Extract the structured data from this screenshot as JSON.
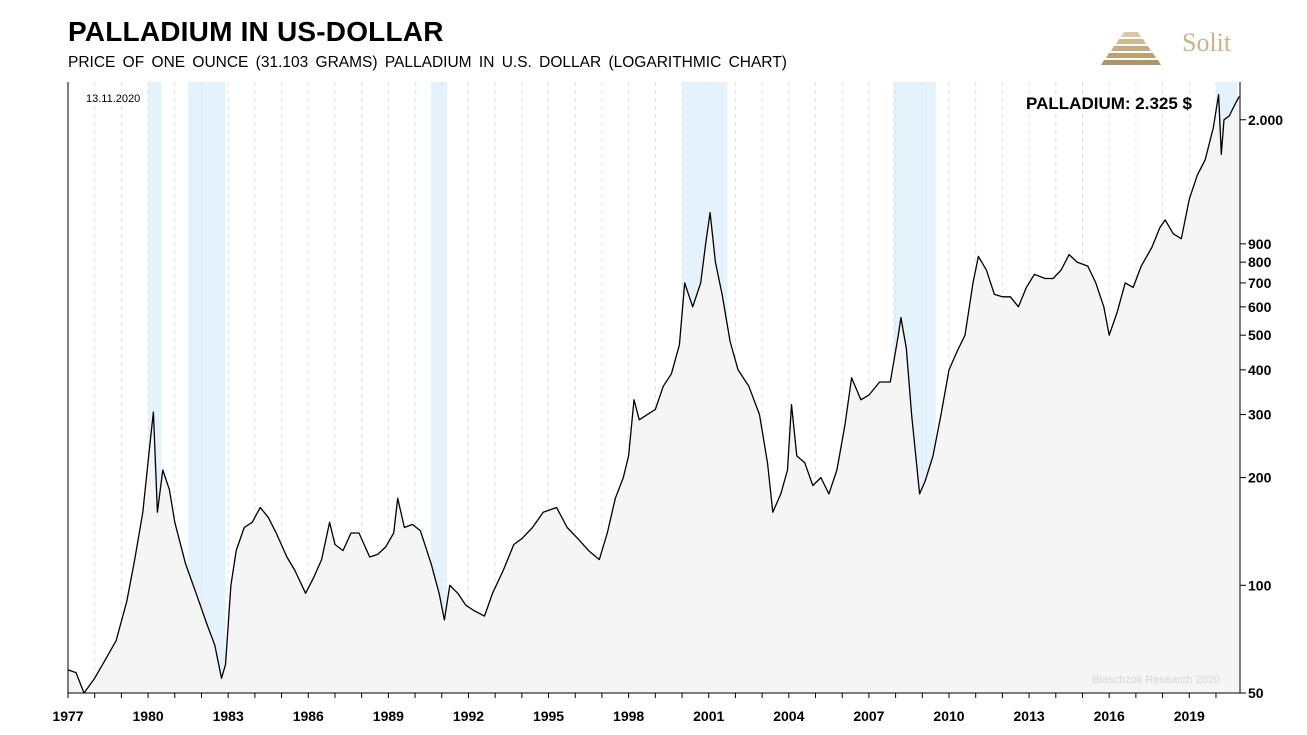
{
  "header": {
    "title": "PALLADIUM IN US-DOLLAR",
    "subtitle": "PRICE  OF  ONE  OUNCE  (31.103 GRAMS)  PALLADIUM  IN  U.S. DOLLAR (LOGARITHMIC CHART)"
  },
  "brand": {
    "name": "Solit",
    "color": "#c9b28c"
  },
  "annotations": {
    "date": "13.11.2020",
    "value_label": "PALLADIUM: 2.325 $",
    "source": "Blaschzok Research 2020"
  },
  "chart_data": {
    "type": "line",
    "x_unit": "year",
    "xlim": [
      1977,
      2020.9
    ],
    "ylim": [
      50,
      2550
    ],
    "y_scale": "log",
    "grid": "vertical dashed",
    "x_tick_labels": [
      "1977",
      "1980",
      "1983",
      "1986",
      "1989",
      "1992",
      "1995",
      "1998",
      "2001",
      "2004",
      "2007",
      "2010",
      "2013",
      "2016",
      "2019"
    ],
    "x_tick_values": [
      1977,
      1980,
      1983,
      1986,
      1989,
      1992,
      1995,
      1998,
      2001,
      2004,
      2007,
      2010,
      2013,
      2016,
      2019
    ],
    "y_tick_labels": [
      "50",
      "100",
      "200",
      "300",
      "400",
      "500",
      "600",
      "700",
      "800",
      "900",
      "2.000"
    ],
    "y_tick_values": [
      50,
      100,
      200,
      300,
      400,
      500,
      600,
      700,
      800,
      900,
      2000
    ],
    "highlight_bands": [
      [
        1980.0,
        1980.5
      ],
      [
        1981.5,
        1982.9
      ],
      [
        1990.6,
        1991.2
      ],
      [
        2000.0,
        2001.7
      ],
      [
        2007.9,
        2009.5
      ],
      [
        2020.0,
        2020.8
      ]
    ],
    "series": [
      {
        "line_color": "#000000",
        "fill_color": "#f5f5f5",
        "points": [
          [
            1977.0,
            58
          ],
          [
            1977.3,
            57
          ],
          [
            1977.6,
            50
          ],
          [
            1978.0,
            55
          ],
          [
            1978.4,
            62
          ],
          [
            1978.8,
            70
          ],
          [
            1979.2,
            90
          ],
          [
            1979.5,
            118
          ],
          [
            1979.8,
            160
          ],
          [
            1980.05,
            240
          ],
          [
            1980.2,
            305
          ],
          [
            1980.35,
            160
          ],
          [
            1980.55,
            210
          ],
          [
            1980.8,
            185
          ],
          [
            1981.0,
            150
          ],
          [
            1981.4,
            115
          ],
          [
            1981.8,
            95
          ],
          [
            1982.2,
            78
          ],
          [
            1982.5,
            68
          ],
          [
            1982.75,
            55
          ],
          [
            1982.9,
            60
          ],
          [
            1983.1,
            100
          ],
          [
            1983.3,
            125
          ],
          [
            1983.6,
            145
          ],
          [
            1983.9,
            150
          ],
          [
            1984.2,
            165
          ],
          [
            1984.5,
            155
          ],
          [
            1984.8,
            140
          ],
          [
            1985.2,
            120
          ],
          [
            1985.5,
            110
          ],
          [
            1985.9,
            95
          ],
          [
            1986.2,
            105
          ],
          [
            1986.5,
            118
          ],
          [
            1986.8,
            150
          ],
          [
            1987.0,
            130
          ],
          [
            1987.3,
            125
          ],
          [
            1987.6,
            140
          ],
          [
            1987.9,
            140
          ],
          [
            1988.3,
            120
          ],
          [
            1988.6,
            122
          ],
          [
            1988.9,
            128
          ],
          [
            1989.2,
            140
          ],
          [
            1989.35,
            175
          ],
          [
            1989.6,
            145
          ],
          [
            1989.9,
            148
          ],
          [
            1990.2,
            142
          ],
          [
            1990.6,
            115
          ],
          [
            1990.9,
            95
          ],
          [
            1991.1,
            80
          ],
          [
            1991.3,
            100
          ],
          [
            1991.6,
            95
          ],
          [
            1991.9,
            88
          ],
          [
            1992.2,
            85
          ],
          [
            1992.6,
            82
          ],
          [
            1992.9,
            95
          ],
          [
            1993.3,
            110
          ],
          [
            1993.7,
            130
          ],
          [
            1994.0,
            135
          ],
          [
            1994.4,
            145
          ],
          [
            1994.8,
            160
          ],
          [
            1995.3,
            165
          ],
          [
            1995.7,
            145
          ],
          [
            1996.1,
            135
          ],
          [
            1996.5,
            125
          ],
          [
            1996.9,
            118
          ],
          [
            1997.2,
            140
          ],
          [
            1997.5,
            175
          ],
          [
            1997.8,
            200
          ],
          [
            1998.0,
            230
          ],
          [
            1998.2,
            330
          ],
          [
            1998.4,
            290
          ],
          [
            1998.7,
            300
          ],
          [
            1999.0,
            310
          ],
          [
            1999.3,
            360
          ],
          [
            1999.6,
            390
          ],
          [
            1999.9,
            470
          ],
          [
            2000.1,
            700
          ],
          [
            2000.4,
            600
          ],
          [
            2000.7,
            700
          ],
          [
            2000.9,
            920
          ],
          [
            2001.05,
            1100
          ],
          [
            2001.25,
            800
          ],
          [
            2001.5,
            650
          ],
          [
            2001.8,
            480
          ],
          [
            2002.1,
            400
          ],
          [
            2002.5,
            360
          ],
          [
            2002.9,
            300
          ],
          [
            2003.2,
            220
          ],
          [
            2003.4,
            160
          ],
          [
            2003.7,
            180
          ],
          [
            2003.95,
            210
          ],
          [
            2004.1,
            320
          ],
          [
            2004.3,
            230
          ],
          [
            2004.6,
            220
          ],
          [
            2004.9,
            190
          ],
          [
            2005.2,
            200
          ],
          [
            2005.5,
            180
          ],
          [
            2005.8,
            210
          ],
          [
            2006.1,
            280
          ],
          [
            2006.35,
            380
          ],
          [
            2006.7,
            330
          ],
          [
            2007.0,
            340
          ],
          [
            2007.4,
            370
          ],
          [
            2007.8,
            370
          ],
          [
            2008.1,
            500
          ],
          [
            2008.2,
            560
          ],
          [
            2008.4,
            460
          ],
          [
            2008.6,
            300
          ],
          [
            2008.9,
            180
          ],
          [
            2009.1,
            195
          ],
          [
            2009.4,
            230
          ],
          [
            2009.7,
            300
          ],
          [
            2010.0,
            400
          ],
          [
            2010.3,
            450
          ],
          [
            2010.6,
            500
          ],
          [
            2010.9,
            700
          ],
          [
            2011.1,
            830
          ],
          [
            2011.4,
            760
          ],
          [
            2011.7,
            650
          ],
          [
            2012.0,
            640
          ],
          [
            2012.3,
            640
          ],
          [
            2012.6,
            600
          ],
          [
            2012.9,
            680
          ],
          [
            2013.2,
            740
          ],
          [
            2013.6,
            720
          ],
          [
            2013.9,
            720
          ],
          [
            2014.2,
            760
          ],
          [
            2014.5,
            840
          ],
          [
            2014.8,
            800
          ],
          [
            2015.2,
            780
          ],
          [
            2015.5,
            700
          ],
          [
            2015.8,
            600
          ],
          [
            2016.0,
            500
          ],
          [
            2016.3,
            580
          ],
          [
            2016.6,
            700
          ],
          [
            2016.9,
            680
          ],
          [
            2017.2,
            780
          ],
          [
            2017.6,
            880
          ],
          [
            2017.9,
            1000
          ],
          [
            2018.1,
            1050
          ],
          [
            2018.4,
            960
          ],
          [
            2018.7,
            930
          ],
          [
            2019.0,
            1200
          ],
          [
            2019.3,
            1400
          ],
          [
            2019.6,
            1550
          ],
          [
            2019.9,
            1900
          ],
          [
            2020.1,
            2350
          ],
          [
            2020.2,
            1600
          ],
          [
            2020.3,
            2000
          ],
          [
            2020.5,
            2050
          ],
          [
            2020.7,
            2200
          ],
          [
            2020.87,
            2325
          ]
        ]
      }
    ]
  }
}
